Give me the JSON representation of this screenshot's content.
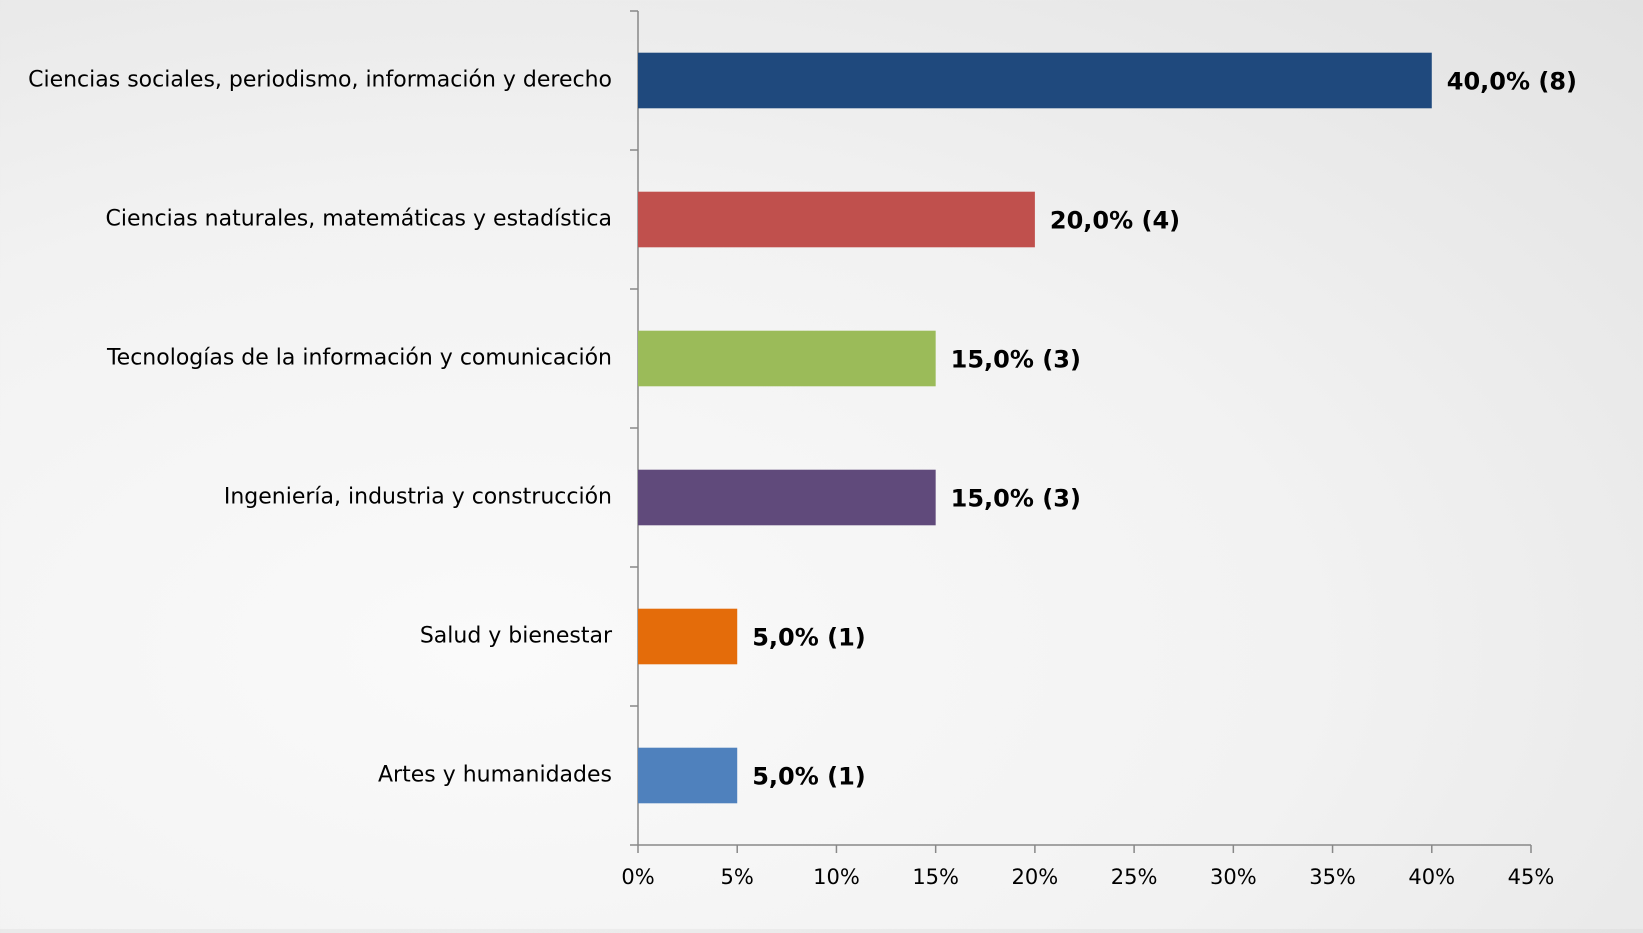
{
  "chart_data": {
    "type": "barh",
    "categories": [
      "Ciencias sociales, periodismo, información y derecho",
      "Ciencias naturales, matemáticas y estadística",
      "Tecnologías de la información y comunicación",
      "Ingeniería, industria y construcción",
      "Salud y bienestar",
      "Artes y humanidades"
    ],
    "values": [
      40,
      20,
      15,
      15,
      5,
      5
    ],
    "value_labels": [
      "40,0% (8)",
      "20,0% (4)",
      "15,0% (3)",
      "15,0% (3)",
      "5,0% (1)",
      "5,0% (1)"
    ],
    "colors": [
      "#1f497d",
      "#c0504d",
      "#9bbb59",
      "#604a7b",
      "#e46c0a",
      "#4f81bd"
    ],
    "xlim": [
      0,
      45
    ],
    "xticks": [
      {
        "value": 0,
        "label": "0%"
      },
      {
        "value": 5,
        "label": "5%"
      },
      {
        "value": 10,
        "label": "10%"
      },
      {
        "value": 15,
        "label": "15%"
      },
      {
        "value": 20,
        "label": "20%"
      },
      {
        "value": 25,
        "label": "25%"
      },
      {
        "value": 30,
        "label": "30%"
      },
      {
        "value": 35,
        "label": "35%"
      },
      {
        "value": 40,
        "label": "40%"
      },
      {
        "value": 45,
        "label": "45%"
      }
    ]
  }
}
